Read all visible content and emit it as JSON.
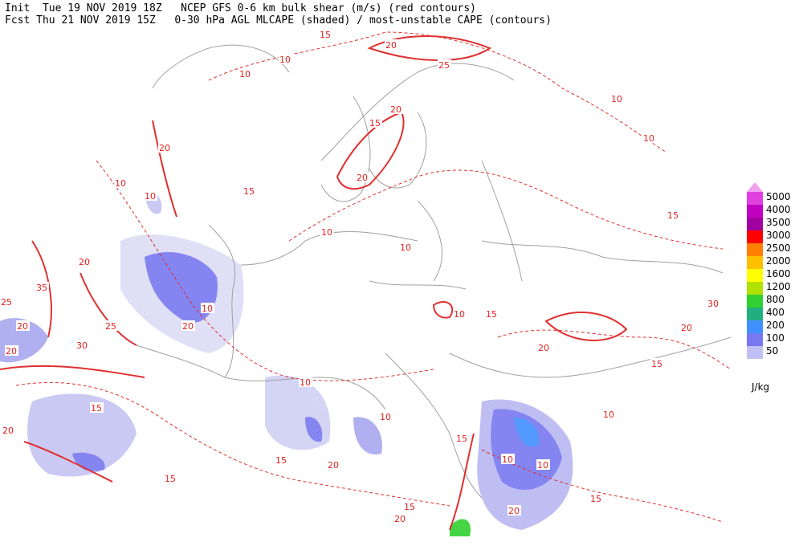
{
  "header": {
    "line1": "Init  Tue 19 NOV 2019 18Z   NCEP GFS 0-6 km bulk shear (m/s) (red contours)",
    "line2": "Fcst Thu 21 NOV 2019 15Z   0-30 hPa AGL MLCAPE (shaded) / most-unstable CAPE (contours)"
  },
  "legend": {
    "levels": [
      5000,
      4000,
      3500,
      3000,
      2500,
      2000,
      1600,
      1200,
      800,
      400,
      200,
      100,
      50
    ],
    "colors": [
      "#e040e0",
      "#c000c0",
      "#a000a0",
      "#ff0000",
      "#ff8000",
      "#ffc000",
      "#ffff00",
      "#b0e000",
      "#30d030",
      "#20b080",
      "#4090ff",
      "#7878f0",
      "#c0c0f4"
    ],
    "extend_color": "#f0a0f0",
    "unit": "J/kg"
  },
  "contour_labels": [
    15,
    20,
    10,
    25,
    10,
    10,
    20,
    15,
    10,
    20,
    20,
    10,
    10,
    15,
    15,
    10,
    10,
    20,
    35,
    10,
    20,
    25,
    25,
    30,
    20,
    20,
    30,
    20,
    10,
    15,
    20,
    15,
    10,
    15,
    20,
    10,
    15,
    10,
    10,
    15,
    20,
    15,
    20,
    15,
    20,
    10,
    15
  ]
}
